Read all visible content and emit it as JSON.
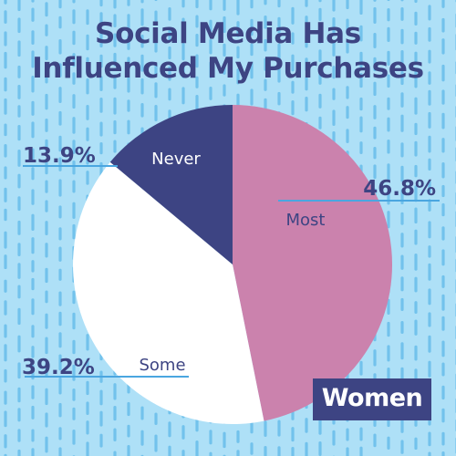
{
  "colors": {
    "background": "#aee0f7",
    "dash": "#72c2ec",
    "navy": "#3d4483",
    "pink": "#cb82ad",
    "white": "#ffffff",
    "label_line": "#4aa6e0"
  },
  "chart_data": {
    "type": "pie",
    "title": "Social Media Has Influenced My Purchases",
    "title_lines": [
      "Social Media Has",
      "Influenced My Purchases"
    ],
    "slices": [
      {
        "label": "Most",
        "value": 46.8,
        "value_label": "46.8%",
        "color": "#cb82ad",
        "label_color": "#3d4483"
      },
      {
        "label": "Some",
        "value": 39.2,
        "value_label": "39.2%",
        "color": "#ffffff",
        "label_color": "#3d4483"
      },
      {
        "label": "Never",
        "value": 13.9,
        "value_label": "13.9%",
        "color": "#3d4483",
        "label_color": "#ffffff"
      }
    ],
    "start": "12 o'clock",
    "direction": "clockwise"
  },
  "badge": {
    "text": "Women"
  }
}
